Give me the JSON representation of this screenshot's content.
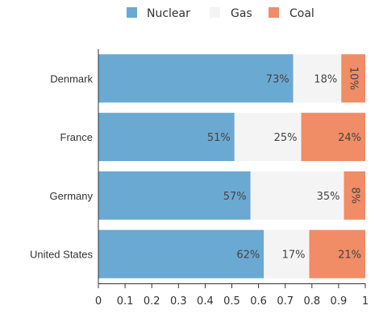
{
  "chart_data": {
    "type": "bar",
    "orientation": "horizontal",
    "stacked": true,
    "categories": [
      "Denmark",
      "France",
      "Germany",
      "United States"
    ],
    "series": [
      {
        "name": "Nuclear",
        "color": "#6aa9d2",
        "values": [
          0.73,
          0.51,
          0.57,
          0.62
        ],
        "labels": [
          "73%",
          "51%",
          "57%",
          "62%"
        ]
      },
      {
        "name": "Gas",
        "color": "#f4f4f4",
        "values": [
          0.18,
          0.25,
          0.35,
          0.17
        ],
        "labels": [
          "18%",
          "25%",
          "35%",
          "17%"
        ]
      },
      {
        "name": "Coal",
        "color": "#f08c66",
        "values": [
          0.1,
          0.24,
          0.08,
          0.21
        ],
        "labels": [
          "10%",
          "24%",
          "8%",
          "21%"
        ]
      }
    ],
    "rotated_labels": [
      "Denmark:Coal",
      "Germany:Coal"
    ],
    "xlim": [
      0,
      1
    ],
    "xticks": [
      "0",
      "0.1",
      "0.2",
      "0.3",
      "0.4",
      "0.5",
      "0.6",
      "0.7",
      "0.8",
      "0.9",
      "1"
    ],
    "title": "",
    "xlabel": "",
    "ylabel": "",
    "legend_position": "top-center",
    "grid": false
  }
}
